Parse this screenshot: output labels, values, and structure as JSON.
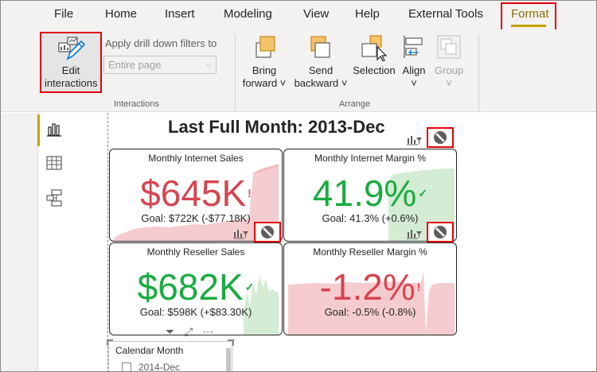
{
  "ribbon": {
    "tabs": [
      "File",
      "Home",
      "Insert",
      "Modeling",
      "View",
      "Help",
      "External Tools",
      "Format"
    ],
    "active_tab": "Format",
    "edit_interactions": {
      "line1": "Edit",
      "line2": "interactions"
    },
    "drill_filters_label": "Apply drill down filters to",
    "drill_filters_value": "Entire page",
    "interactions_group": "Interactions",
    "bring_forward": {
      "line1": "Bring",
      "line2": "forward"
    },
    "send_backward": {
      "line1": "Send",
      "line2": "backward"
    },
    "selection": "Selection",
    "align": "Align",
    "group": "Group",
    "arrange_group": "Arrange"
  },
  "report": {
    "title": "Last Full Month: 2013-Dec",
    "cards": [
      {
        "title": "Monthly Internet Sales",
        "value": "$645K",
        "status": "!",
        "goal": "Goal: $722K (-$77.18K)"
      },
      {
        "title": "Monthly Internet Margin %",
        "value": "41.9%",
        "status": "✓",
        "goal": "Goal: 41.3% (+0.6%)"
      },
      {
        "title": "Monthly Reseller Sales",
        "value": "$682K",
        "status": "✓",
        "goal": "Goal: $598K (+$83.30K)"
      },
      {
        "title": "Monthly Reseller Margin %",
        "value": "-1.2%",
        "status": "!",
        "goal": "Goal: -0.5% (-0.8%)"
      }
    ],
    "slicer": {
      "title": "Calendar Month",
      "item": "2014-Dec"
    }
  },
  "colors": {
    "accent": "#c8a400",
    "highlight": "#e3000b",
    "bad": "#d64550",
    "good": "#1aab40"
  }
}
